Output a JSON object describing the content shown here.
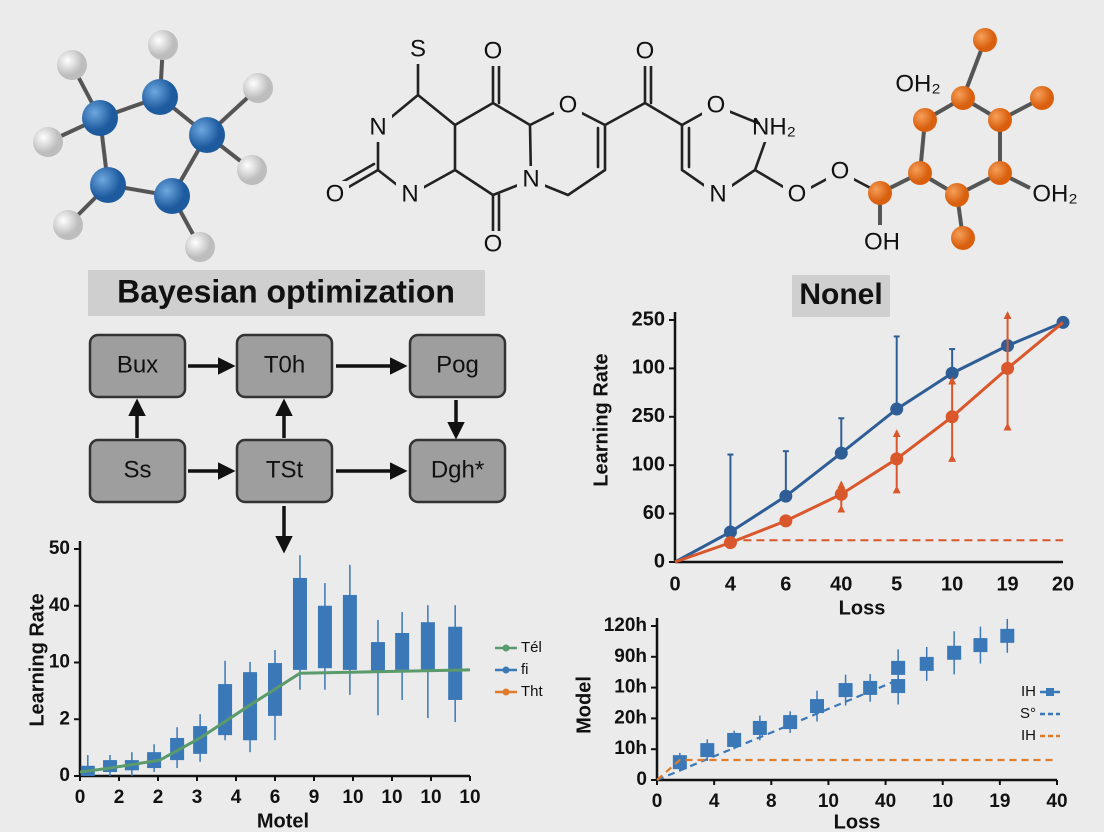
{
  "molecule_labels": [
    "S",
    "O",
    "O",
    "N",
    "O",
    "O",
    "NH₂",
    "O",
    "N",
    "N",
    "O",
    "N",
    "O",
    "O",
    "OH₂",
    "OH",
    "OH₂"
  ],
  "diagram": {
    "title": "Bayesian optimization",
    "nodes": [
      {
        "label": "Bux"
      },
      {
        "label": "T0h"
      },
      {
        "label": "Pog"
      },
      {
        "label": "Ss"
      },
      {
        "label": "TSt"
      },
      {
        "label": "Dgh*"
      }
    ]
  },
  "chart_data": [
    {
      "type": "line",
      "title": "Nonel",
      "x_label": "Loss",
      "y_label": "Learning Rate",
      "categories": [
        "0",
        "4",
        "6",
        "40",
        "5",
        "10",
        "19",
        "20"
      ],
      "ylim": [
        0,
        5
      ],
      "yticks": [
        0,
        {
          "value": 1,
          "label": "60"
        },
        {
          "value": 2,
          "label": "100"
        },
        {
          "value": 3,
          "label": "250"
        },
        {
          "value": 4,
          "label": "100"
        },
        {
          "value": 5,
          "label": "250"
        }
      ],
      "reference_line": {
        "value": 0.45,
        "color": "#d9572b"
      },
      "series": [
        {
          "color": "#2f5e96",
          "error_direction": "up",
          "values": [
            0,
            0.62,
            1.36,
            2.25,
            3.16,
            3.9,
            4.47,
            4.95
          ],
          "errors": [
            null,
            1.6,
            0.93,
            0.72,
            1.5,
            0.5,
            null,
            null
          ]
        },
        {
          "color": "#d9572b",
          "error_direction": "both",
          "values": [
            0,
            0.4,
            0.85,
            1.4,
            2.13,
            3.0,
            4.0,
            4.95
          ],
          "errors": [
            null,
            null,
            null,
            0.25,
            0.58,
            0.8,
            1.15,
            null
          ]
        }
      ]
    },
    {
      "type": "box",
      "x_label": "Motel",
      "y_label": "Learning Rate",
      "xlim": [
        0,
        10
      ],
      "xticks": [
        0,
        {
          "value": 1,
          "label": "2"
        },
        {
          "value": 2,
          "label": "2"
        },
        3,
        4,
        {
          "value": 5,
          "label": "6"
        },
        {
          "value": 6,
          "label": "9"
        },
        {
          "value": 7,
          "label": "10"
        },
        {
          "value": 8,
          "label": "10"
        },
        {
          "value": 9,
          "label": "10"
        },
        10
      ],
      "ylim": [
        0,
        4
      ],
      "yticks": [
        0,
        {
          "value": 1,
          "label": "2"
        },
        {
          "value": 2,
          "label": "10"
        },
        {
          "value": 3,
          "label": "40"
        },
        {
          "value": 4,
          "label": "50"
        }
      ],
      "series": [
        {
          "name": "Tél",
          "color": "#5b9a6b",
          "x": [
            0,
            0.77,
            2.05,
            3.08,
            4.36,
            5.64,
            10
          ],
          "values": [
            0.07,
            0.14,
            0.28,
            0.67,
            1.25,
            1.81,
            1.87
          ]
        },
        {
          "name": "fi",
          "color": "#3a78b8",
          "x": [
            0.2,
            0.77,
            1.33,
            1.9,
            2.49,
            3.08,
            3.72,
            4.36,
            5.0,
            5.64,
            6.28,
            6.92,
            7.64,
            8.26,
            8.92,
            9.62
          ],
          "lows": [
            0,
            0.07,
            0.1,
            0.14,
            0.28,
            0.39,
            0.72,
            0.63,
            1.06,
            1.87,
            1.9,
            1.87,
            1.83,
            1.87,
            1.87,
            1.34
          ],
          "highs": [
            0.18,
            0.28,
            0.28,
            0.42,
            0.67,
            0.88,
            1.62,
            1.83,
            1.99,
            3.49,
            3.0,
            3.19,
            2.36,
            2.52,
            2.71,
            2.63
          ],
          "whisker_lows": [
            0,
            0,
            0,
            0.07,
            0.14,
            0.25,
            0.63,
            0.42,
            0.63,
            1.52,
            1.52,
            1.43,
            1.07,
            1.34,
            1.02,
            0.95
          ],
          "whisker_highs": [
            0.37,
            0.37,
            0.42,
            0.56,
            0.86,
            1.09,
            2.03,
            2.01,
            2.22,
            3.89,
            3.4,
            3.72,
            2.75,
            2.89,
            3.01,
            3.01
          ]
        },
        {
          "name": "Tht",
          "color": "#e07b2a"
        }
      ]
    },
    {
      "type": "scatter",
      "x_label": "Loss",
      "y_label": "Model",
      "xlim": [
        0,
        7
      ],
      "xticks": [
        0,
        {
          "value": 1,
          "label": "4"
        },
        {
          "value": 2,
          "label": "8"
        },
        {
          "value": 3,
          "label": "10"
        },
        {
          "value": 4,
          "label": "40"
        },
        {
          "value": 5,
          "label": "10"
        },
        {
          "value": 6,
          "label": "19"
        },
        {
          "value": 7,
          "label": "40"
        }
      ],
      "ylim": [
        0,
        5
      ],
      "yticks": [
        0,
        {
          "value": 1,
          "label": "10h"
        },
        {
          "value": 2,
          "label": "20h"
        },
        {
          "value": 3,
          "label": "10h"
        },
        {
          "value": 4,
          "label": "90h"
        },
        {
          "value": 5,
          "label": "120h"
        }
      ],
      "series": [
        {
          "name": "IH",
          "color": "#3a78b8",
          "marker": "square",
          "x": [
            0.4,
            0.88,
            1.35,
            1.8,
            2.33,
            2.8,
            3.3,
            3.73,
            4.22,
            4.22,
            4.72,
            5.2,
            5.66,
            6.13
          ],
          "values": [
            0.58,
            0.97,
            1.3,
            1.69,
            1.88,
            2.4,
            2.92,
            2.99,
            3.05,
            3.64,
            3.77,
            4.13,
            4.38,
            4.68
          ],
          "errors": [
            0.3,
            0.35,
            0.3,
            0.4,
            0.35,
            0.5,
            0.5,
            0.45,
            0.6,
            0.6,
            0.55,
            0.7,
            0.6,
            0.55
          ]
        },
        {
          "name": "S°",
          "color": "#3a78b8",
          "dashed": true,
          "x": [
            0,
            4.22
          ],
          "values": [
            0,
            3.25
          ]
        },
        {
          "name": "IH",
          "color": "#e07b2a",
          "dashed": true,
          "x": [
            0,
            0.4,
            7
          ],
          "values": [
            0,
            0.65,
            0.65
          ]
        }
      ]
    }
  ]
}
